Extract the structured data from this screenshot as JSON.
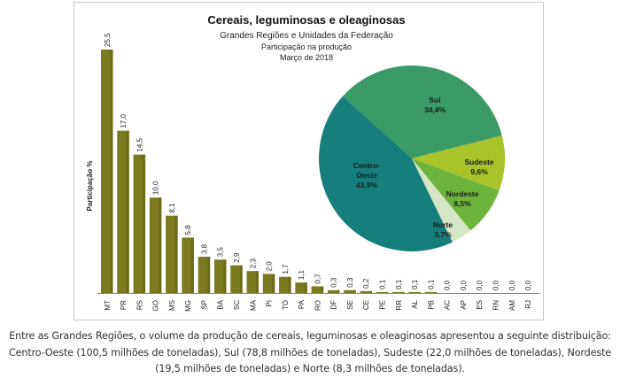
{
  "chart_data": [
    {
      "type": "bar",
      "title": "Cereais, leguminosas e oleaginosas",
      "subtitle": "Grandes Regiões e Unidades da Federação",
      "subtitle2": "Participação na produção",
      "subtitle3": "Março de 2018",
      "xlabel": "",
      "ylabel": "Participação %",
      "ylim": [
        0,
        25.5
      ],
      "grid": false,
      "categories": [
        "MT",
        "PR",
        "RS",
        "GO",
        "MS",
        "MG",
        "SP",
        "BA",
        "SC",
        "MA",
        "PI",
        "TO",
        "PA",
        "RO",
        "DF",
        "SE",
        "CE",
        "PE",
        "RR",
        "AL",
        "PB",
        "AC",
        "AP",
        "ES",
        "RN",
        "AM",
        "RJ"
      ],
      "values": [
        25.5,
        17.0,
        14.5,
        10.0,
        8.1,
        5.8,
        3.8,
        3.5,
        2.9,
        2.3,
        2.0,
        1.7,
        1.1,
        0.7,
        0.3,
        0.3,
        0.2,
        0.1,
        0.1,
        0.1,
        0.1,
        0.0,
        0.0,
        0.0,
        0.0,
        0.0,
        0.0
      ],
      "value_labels": [
        "25,5",
        "17,0",
        "14,5",
        "10,0",
        "8,1",
        "5,8",
        "3,8",
        "3,5",
        "2,9",
        "2,3",
        "2,0",
        "1,7",
        "1,1",
        "0,7",
        "0,3",
        "0,3",
        "0,2",
        "0,1",
        "0,1",
        "0,1",
        "0,1",
        "0,0",
        "0,0",
        "0,0",
        "0,0",
        "0,0",
        "0,0"
      ],
      "bar_color": "#7a7a1e"
    },
    {
      "type": "pie",
      "slices": [
        {
          "name": "Sul",
          "label_lines": [
            "Sul",
            "34,4%"
          ],
          "value": 34.4,
          "color": "#3a9a68"
        },
        {
          "name": "Sudeste",
          "label_lines": [
            "Sudeste",
            "9,6%"
          ],
          "value": 9.6,
          "color": "#a8c42a"
        },
        {
          "name": "Nordeste",
          "label_lines": [
            "Nordeste",
            "8,5%"
          ],
          "value": 8.5,
          "color": "#6cb43c"
        },
        {
          "name": "Norte",
          "label_lines": [
            "Norte",
            "3,7%"
          ],
          "value": 3.7,
          "color": "#d4e6c4"
        },
        {
          "name": "Centro-Oeste",
          "label_lines": [
            "Centro-",
            "Oeste",
            "43,9%"
          ],
          "value": 43.9,
          "color": "#167e7c"
        }
      ]
    }
  ],
  "caption": "Entre as Grandes Regiões, o volume da produção de cereais, leguminosas e oleaginosas apresentou a seguinte distribuição: Centro-Oeste (100,5 milhões de toneladas), Sul (78,8 milhões de toneladas), Sudeste (22,0 milhões de toneladas), Nordeste (19,5 milhões de toneladas) e Norte (8,3 milhões de toneladas)."
}
